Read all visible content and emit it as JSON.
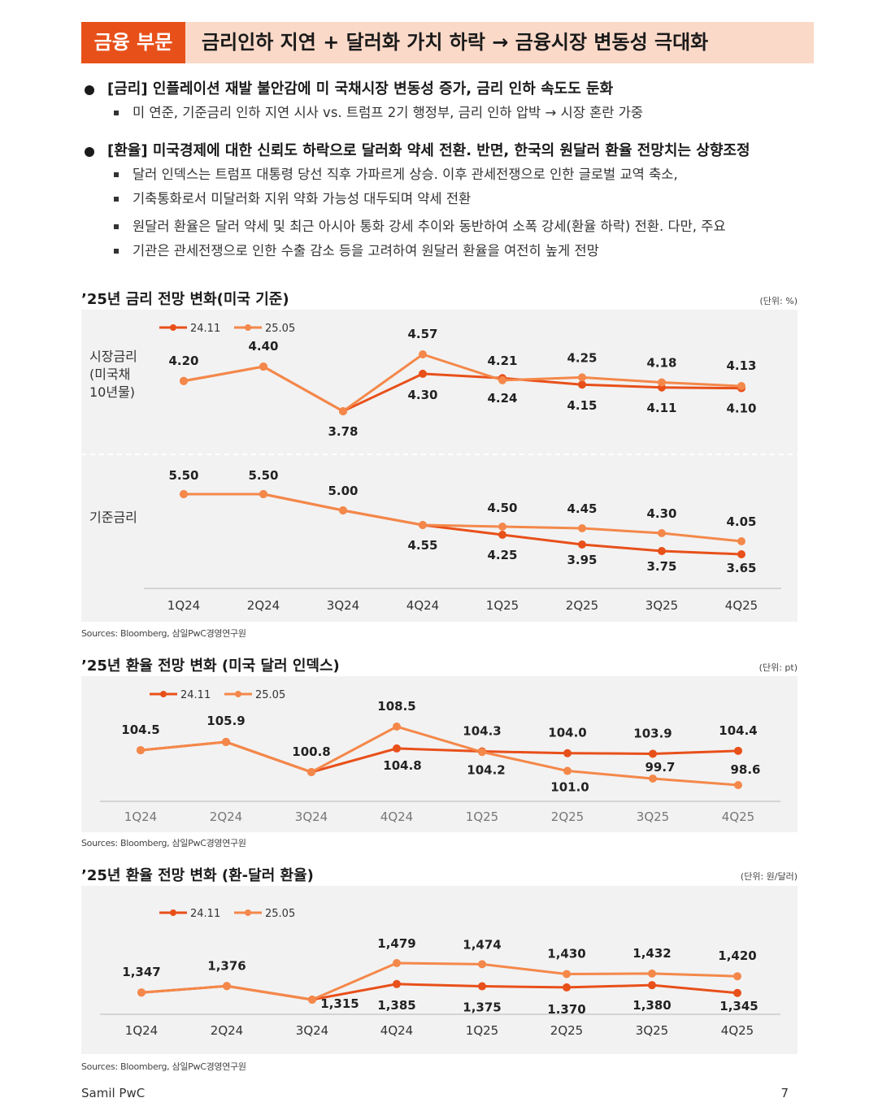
{
  "header": {
    "tag": "금융 부문",
    "title": "금리인하 지연 + 달러화 가치 하락 → 금융시장 변동성 극대화"
  },
  "bullets": [
    {
      "text": "[금리] 인플레이션 재발 불안감에 미 국채시장 변동성 증가, 금리 인하 속도도 둔화",
      "subs": [
        "미 연준, 기준금리 인하 지연 시사 vs. 트럼프 2기 행정부, 금리 인하 압박 → 시장 혼란 가중"
      ]
    },
    {
      "text": "[환율] 미국경제에 대한 신뢰도 하락으로 달러화 약세 전환. 반면, 한국의 원달러 환율 전망치는 상향조정",
      "subs": [
        "달러 인덱스는 트럼프 대통령 당선 직후 가파르게 상승. 이후 관세전쟁으로 인한 글로벌 교역 축소,",
        "기축통화로서 미달러화 지위 약화 가능성 대두되며 약세 전환",
        "원달러 환율은 달러 약세 및 최근 아시아 통화 강세 추이와 동반하여 소폭 강세(환율 하락) 전환. 다만, 주요",
        "기관은 관세전쟁으로 인한 수출 감소 등을 고려하여 원달러 환율을 여전히 높게 전망"
      ]
    }
  ],
  "colors": {
    "s1": "#e8501a",
    "s2": "#f4884a",
    "bg": "#f2f2f2",
    "accent": "#e8501a"
  },
  "charts": [
    {
      "title": "’25년 금리 전망 변화(미국 기준)",
      "unit": "(단위: %)",
      "source": "Sources: Bloomberg, 삼일PwC경영연구원"
    },
    {
      "title": "’25년 환율 전망 변화 (미국 달러 인덱스)",
      "unit": "(단위: pt)",
      "source": "Sources: Bloomberg, 삼일PwC경영연구원"
    },
    {
      "title": "’25년 환율 전망 변화 (환-달러 환율)",
      "unit": "(단위: 원/달러)",
      "source": "Sources: Bloomberg, 삼일PwC경영연구원"
    }
  ],
  "chart_data": [
    {
      "type": "line",
      "title": "’25년 금리 전망 변화(미국 기준)",
      "panel_label": "시장금리 (미국채 10년물)",
      "categories": [
        "1Q24",
        "2Q24",
        "3Q24",
        "4Q24",
        "1Q25",
        "2Q25",
        "3Q25",
        "4Q25"
      ],
      "series": [
        {
          "name": "24.11",
          "values": [
            4.2,
            4.4,
            3.78,
            4.3,
            4.24,
            4.15,
            4.11,
            4.1
          ]
        },
        {
          "name": "25.05",
          "values": [
            4.2,
            4.4,
            3.78,
            4.57,
            4.21,
            4.25,
            4.18,
            4.13
          ]
        }
      ],
      "labels": [
        "4.20",
        "4.40",
        "3.78",
        "4.57",
        "4.30",
        "4.21",
        "4.24",
        "4.25",
        "4.15",
        "4.18",
        "4.11",
        "4.13",
        "4.10"
      ]
    },
    {
      "type": "line",
      "title": "’25년 금리 전망 변화(미국 기준)",
      "panel_label": "기준금리",
      "categories": [
        "1Q24",
        "2Q24",
        "3Q24",
        "4Q24",
        "1Q25",
        "2Q25",
        "3Q25",
        "4Q25"
      ],
      "series": [
        {
          "name": "24.11",
          "values": [
            5.5,
            5.5,
            5.0,
            4.55,
            4.25,
            3.95,
            3.75,
            3.65
          ]
        },
        {
          "name": "25.05",
          "values": [
            5.5,
            5.5,
            5.0,
            4.55,
            4.5,
            4.45,
            4.3,
            4.05
          ]
        }
      ],
      "labels": [
        "5.50",
        "5.50",
        "5.00",
        "4.55",
        "4.50",
        "4.25",
        "4.45",
        "3.95",
        "4.30",
        "3.75",
        "4.05",
        "3.65"
      ]
    },
    {
      "type": "line",
      "title": "’25년 환율 전망 변화 (미국 달러 인덱스)",
      "categories": [
        "1Q24",
        "2Q24",
        "3Q24",
        "4Q24",
        "1Q25",
        "2Q25",
        "3Q25",
        "4Q25"
      ],
      "series": [
        {
          "name": "24.11",
          "values": [
            104.5,
            105.9,
            100.8,
            104.8,
            104.3,
            104.0,
            103.9,
            104.4
          ]
        },
        {
          "name": "25.05",
          "values": [
            104.5,
            105.9,
            100.8,
            108.5,
            104.2,
            101.0,
            99.7,
            98.6
          ]
        }
      ],
      "labels": [
        "104.5",
        "105.9",
        "100.8",
        "108.5",
        "104.8",
        "104.3",
        "104.2",
        "104.0",
        "101.0",
        "103.9",
        "99.7",
        "104.4",
        "98.6"
      ]
    },
    {
      "type": "line",
      "title": "’25년 환율 전망 변화 (환-달러 환율)",
      "categories": [
        "1Q24",
        "2Q24",
        "3Q24",
        "4Q24",
        "1Q25",
        "2Q25",
        "3Q25",
        "4Q25"
      ],
      "series": [
        {
          "name": "24.11",
          "values": [
            1347,
            1376,
            1315,
            1385,
            1375,
            1370,
            1380,
            1345
          ]
        },
        {
          "name": "25.05",
          "values": [
            1347,
            1376,
            1315,
            1479,
            1474,
            1430,
            1432,
            1420
          ]
        }
      ],
      "labels": [
        "1,347",
        "1,376",
        "1,315",
        "1,479",
        "1,385",
        "1,474",
        "1,375",
        "1,430",
        "1,370",
        "1,432",
        "1,380",
        "1,420",
        "1,345"
      ]
    }
  ],
  "footer": {
    "left": "Samil PwC",
    "right": "7"
  }
}
